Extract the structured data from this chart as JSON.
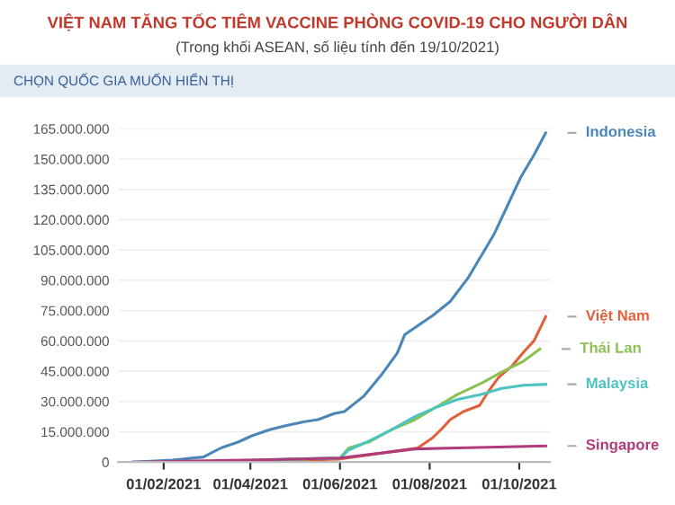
{
  "chart_data": {
    "type": "line",
    "title": "VIỆT NAM TĂNG TỐC TIÊM VACCINE PHÒNG COVID-19 CHO NGƯỜI DÂN",
    "subtitle": "(Trong khối ASEAN, số liệu tính đến 19/10/2021)",
    "annotations": [
      "CHỌN QUỐC GIA MUỐN HIỂN THỊ"
    ],
    "series": [
      {
        "name": "Indonesia",
        "color": "#4a86b8",
        "x": [
          "2021-01-11",
          "2021-02-07",
          "2021-02-28",
          "2021-03-12",
          "2021-03-24",
          "2021-04-02",
          "2021-04-14",
          "2021-04-25",
          "2021-05-08",
          "2021-05-17",
          "2021-05-28",
          "2021-06-04",
          "2021-06-17",
          "2021-06-29",
          "2021-07-10",
          "2021-07-15",
          "2021-07-25",
          "2021-08-03",
          "2021-08-15",
          "2021-08-27",
          "2021-09-05",
          "2021-09-14",
          "2021-09-23",
          "2021-10-02",
          "2021-10-11",
          "2021-10-19"
        ],
        "values": [
          0,
          1000000,
          2500000,
          7000000,
          10000000,
          13000000,
          16000000,
          18000000,
          20000000,
          21000000,
          24000000,
          25000000,
          32500000,
          43000000,
          54000000,
          63000000,
          68000000,
          72500000,
          79500000,
          91000000,
          102000000,
          113000000,
          127000000,
          141000000,
          152000000,
          163000000
        ]
      },
      {
        "name": "Việt Nam",
        "color": "#e0603a",
        "x": [
          "2021-03-08",
          "2021-06-01",
          "2021-07-24",
          "2021-08-03",
          "2021-08-10",
          "2021-08-15",
          "2021-08-24",
          "2021-09-04",
          "2021-09-10",
          "2021-09-17",
          "2021-09-26",
          "2021-10-04",
          "2021-10-11",
          "2021-10-19"
        ],
        "values": [
          0,
          1500000,
          7000000,
          12000000,
          17000000,
          21000000,
          25000000,
          28000000,
          35000000,
          42000000,
          47500000,
          54500000,
          60000000,
          72000000
        ]
      },
      {
        "name": "Thái Lan",
        "color": "#8cc152",
        "x": [
          "2021-02-28",
          "2021-04-01",
          "2021-05-01",
          "2021-06-01",
          "2021-06-07",
          "2021-06-21",
          "2021-07-06",
          "2021-07-22",
          "2021-08-05",
          "2021-08-20",
          "2021-09-05",
          "2021-09-19",
          "2021-10-04",
          "2021-10-15"
        ],
        "values": [
          0,
          500000,
          1500000,
          2000000,
          7000000,
          10000000,
          16000000,
          21000000,
          27000000,
          33500000,
          39000000,
          44500000,
          50000000,
          56000000
        ]
      },
      {
        "name": "Malaysia",
        "color": "#4cc3c0",
        "x": [
          "2021-02-24",
          "2021-04-01",
          "2021-05-01",
          "2021-06-01",
          "2021-06-07",
          "2021-06-21",
          "2021-07-06",
          "2021-07-22",
          "2021-08-05",
          "2021-08-20",
          "2021-09-05",
          "2021-09-19",
          "2021-10-04",
          "2021-10-19"
        ],
        "values": [
          0,
          1000000,
          1500000,
          2000000,
          6000000,
          10500000,
          16000000,
          22500000,
          27000000,
          31000000,
          33500000,
          36500000,
          38000000,
          38500000
        ]
      },
      {
        "name": "Singapore",
        "color": "#b03a7a",
        "x": [
          "2021-01-11",
          "2021-04-01",
          "2021-06-01",
          "2021-07-22",
          "2021-08-20",
          "2021-10-19"
        ],
        "values": [
          0,
          1000000,
          2000000,
          6500000,
          7000000,
          8000000
        ]
      }
    ],
    "xlim": [
      "2021-01-01",
      "2021-10-22"
    ],
    "xticks": [
      {
        "value": "2021-02-01",
        "label": "01/02/2021"
      },
      {
        "value": "2021-04-01",
        "label": "01/04/2021"
      },
      {
        "value": "2021-06-01",
        "label": "01/06/2021"
      },
      {
        "value": "2021-08-01",
        "label": "01/08/2021"
      },
      {
        "value": "2021-10-01",
        "label": "01/10/2021"
      }
    ],
    "ylim": [
      0,
      165000000
    ],
    "yticks": [
      0,
      {
        "value": 15000000,
        "label": "15.000.000"
      },
      {
        "value": 30000000,
        "label": "30.000.000"
      },
      {
        "value": 45000000,
        "label": "45.000.000"
      },
      {
        "value": 60000000,
        "label": "60.000.000"
      },
      {
        "value": 75000000,
        "label": "75.000.000"
      },
      {
        "value": 90000000,
        "label": "90.000.000"
      },
      {
        "value": 105000000,
        "label": "105.000.000"
      },
      {
        "value": 120000000,
        "label": "120.000.000"
      },
      {
        "value": 135000000,
        "label": "135.000.000"
      },
      {
        "value": 150000000,
        "label": "150.000.000"
      },
      {
        "value": 165000000,
        "label": "165.000.000"
      }
    ],
    "grid": "y",
    "legend": false,
    "marker": "none",
    "line_style": "solid"
  }
}
